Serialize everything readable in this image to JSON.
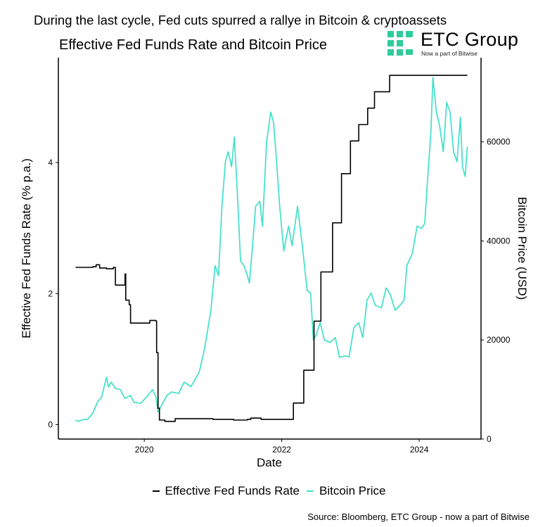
{
  "headline": "During the last cycle, Fed cuts spurred a rallye in Bitcoin & cryptoassets",
  "logo": {
    "name": "ETC Group",
    "tagline": "Now a part of Bitwise",
    "color": "#2ecc9a"
  },
  "source": "Source: Bloomberg, ETC Group - now a part of Bitwise",
  "colors": {
    "fed": "#000000",
    "btc": "#40e0c8"
  },
  "chart_data": {
    "type": "line",
    "title": "Effective Fed Funds Rate and Bitcoin Price",
    "xlabel": "Date",
    "ylabel": "Effective Fed Funds Rate (% p.a.)",
    "ylabel_right": "Bitcoin Price (USD)",
    "x_ticks": [
      "2020",
      "2022",
      "2024"
    ],
    "y_ticks_left": [
      "0",
      "2",
      "4"
    ],
    "y_ticks_right": [
      "0",
      "20000",
      "40000",
      "60000"
    ],
    "xlim": [
      2018.75,
      2024.9
    ],
    "ylim_left": [
      -0.22,
      5.6
    ],
    "ylim_right": [
      0,
      77000
    ],
    "grid": false,
    "legend_position": "bottom",
    "legend": [
      "Effective Fed Funds Rate",
      "Bitcoin Price"
    ],
    "series": [
      {
        "name": "Effective Fed Funds Rate",
        "axis": "left",
        "step": true,
        "points": [
          [
            2019.0,
            2.4
          ],
          [
            2019.25,
            2.41
          ],
          [
            2019.3,
            2.44
          ],
          [
            2019.35,
            2.39
          ],
          [
            2019.45,
            2.38
          ],
          [
            2019.55,
            2.4
          ],
          [
            2019.58,
            2.13
          ],
          [
            2019.7,
            2.13
          ],
          [
            2019.72,
            2.3
          ],
          [
            2019.73,
            1.9
          ],
          [
            2019.78,
            1.83
          ],
          [
            2019.8,
            1.55
          ],
          [
            2020.05,
            1.55
          ],
          [
            2020.08,
            1.59
          ],
          [
            2020.17,
            1.58
          ],
          [
            2020.18,
            1.1
          ],
          [
            2020.2,
            0.25
          ],
          [
            2020.22,
            0.07
          ],
          [
            2020.3,
            0.05
          ],
          [
            2020.45,
            0.09
          ],
          [
            2020.8,
            0.09
          ],
          [
            2021.0,
            0.08
          ],
          [
            2021.3,
            0.07
          ],
          [
            2021.5,
            0.08
          ],
          [
            2021.55,
            0.1
          ],
          [
            2021.7,
            0.08
          ],
          [
            2022.0,
            0.08
          ],
          [
            2022.15,
            0.08
          ],
          [
            2022.17,
            0.33
          ],
          [
            2022.3,
            0.33
          ],
          [
            2022.32,
            0.83
          ],
          [
            2022.45,
            0.83
          ],
          [
            2022.47,
            1.58
          ],
          [
            2022.55,
            1.58
          ],
          [
            2022.57,
            2.33
          ],
          [
            2022.72,
            2.33
          ],
          [
            2022.74,
            3.08
          ],
          [
            2022.85,
            3.08
          ],
          [
            2022.87,
            3.83
          ],
          [
            2022.98,
            3.83
          ],
          [
            2023.0,
            4.33
          ],
          [
            2023.12,
            4.58
          ],
          [
            2023.25,
            4.83
          ],
          [
            2023.35,
            5.08
          ],
          [
            2023.57,
            5.33
          ],
          [
            2024.7,
            5.33
          ]
        ]
      },
      {
        "name": "Bitcoin Price",
        "axis": "right",
        "step": false,
        "points": [
          [
            2019.0,
            3800
          ],
          [
            2019.05,
            3600
          ],
          [
            2019.1,
            3900
          ],
          [
            2019.18,
            4000
          ],
          [
            2019.25,
            5200
          ],
          [
            2019.32,
            7500
          ],
          [
            2019.38,
            8500
          ],
          [
            2019.45,
            12500
          ],
          [
            2019.48,
            10500
          ],
          [
            2019.52,
            11500
          ],
          [
            2019.58,
            10200
          ],
          [
            2019.65,
            10000
          ],
          [
            2019.72,
            8200
          ],
          [
            2019.8,
            8800
          ],
          [
            2019.85,
            7400
          ],
          [
            2019.95,
            7200
          ],
          [
            2020.05,
            8800
          ],
          [
            2020.12,
            10000
          ],
          [
            2020.17,
            8500
          ],
          [
            2020.2,
            5400
          ],
          [
            2020.25,
            6800
          ],
          [
            2020.33,
            8800
          ],
          [
            2020.4,
            9500
          ],
          [
            2020.5,
            9200
          ],
          [
            2020.58,
            11500
          ],
          [
            2020.68,
            10600
          ],
          [
            2020.8,
            13500
          ],
          [
            2020.88,
            18500
          ],
          [
            2020.97,
            26000
          ],
          [
            2021.03,
            35000
          ],
          [
            2021.08,
            33000
          ],
          [
            2021.13,
            47000
          ],
          [
            2021.18,
            56000
          ],
          [
            2021.22,
            58000
          ],
          [
            2021.27,
            55000
          ],
          [
            2021.31,
            61000
          ],
          [
            2021.36,
            48000
          ],
          [
            2021.4,
            36000
          ],
          [
            2021.45,
            35000
          ],
          [
            2021.5,
            33000
          ],
          [
            2021.53,
            31500
          ],
          [
            2021.58,
            40000
          ],
          [
            2021.62,
            47000
          ],
          [
            2021.68,
            48000
          ],
          [
            2021.72,
            43000
          ],
          [
            2021.78,
            60000
          ],
          [
            2021.84,
            66000
          ],
          [
            2021.88,
            64000
          ],
          [
            2021.92,
            57000
          ],
          [
            2021.97,
            47000
          ],
          [
            2022.03,
            38000
          ],
          [
            2022.1,
            43000
          ],
          [
            2022.15,
            39000
          ],
          [
            2022.23,
            47000
          ],
          [
            2022.3,
            39000
          ],
          [
            2022.37,
            30000
          ],
          [
            2022.42,
            29500
          ],
          [
            2022.46,
            20000
          ],
          [
            2022.5,
            21000
          ],
          [
            2022.56,
            23500
          ],
          [
            2022.62,
            20000
          ],
          [
            2022.7,
            19500
          ],
          [
            2022.78,
            20500
          ],
          [
            2022.84,
            16500
          ],
          [
            2022.92,
            16800
          ],
          [
            2022.98,
            16600
          ],
          [
            2023.05,
            22500
          ],
          [
            2023.12,
            23500
          ],
          [
            2023.18,
            20500
          ],
          [
            2023.24,
            28000
          ],
          [
            2023.3,
            29500
          ],
          [
            2023.36,
            27000
          ],
          [
            2023.45,
            26500
          ],
          [
            2023.52,
            30500
          ],
          [
            2023.58,
            29200
          ],
          [
            2023.65,
            26000
          ],
          [
            2023.72,
            27000
          ],
          [
            2023.78,
            28000
          ],
          [
            2023.82,
            35000
          ],
          [
            2023.9,
            37500
          ],
          [
            2023.97,
            43000
          ],
          [
            2024.03,
            42500
          ],
          [
            2024.08,
            43500
          ],
          [
            2024.12,
            52000
          ],
          [
            2024.17,
            62000
          ],
          [
            2024.2,
            73000
          ],
          [
            2024.25,
            66000
          ],
          [
            2024.3,
            63000
          ],
          [
            2024.35,
            58000
          ],
          [
            2024.4,
            68000
          ],
          [
            2024.45,
            66000
          ],
          [
            2024.5,
            58000
          ],
          [
            2024.55,
            56000
          ],
          [
            2024.6,
            65000
          ],
          [
            2024.63,
            55000
          ],
          [
            2024.67,
            53000
          ],
          [
            2024.7,
            59000
          ]
        ]
      }
    ]
  }
}
